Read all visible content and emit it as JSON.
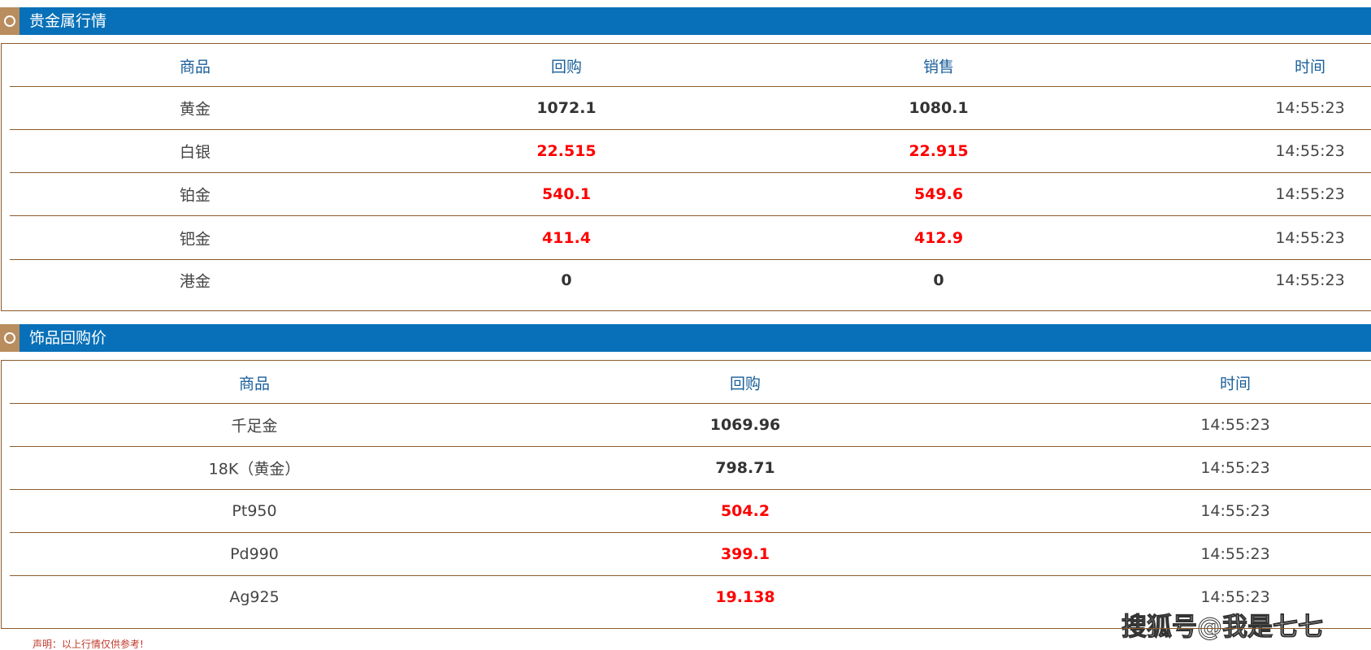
{
  "sections": [
    {
      "title": "贵金属行情",
      "columns": [
        "商品",
        "回购",
        "销售",
        "时间"
      ],
      "rows": [
        {
          "cells": [
            "黄金",
            "1072.1",
            "1080.1",
            "14:55:23"
          ],
          "color": "#333333"
        },
        {
          "cells": [
            "白银",
            "22.515",
            "22.915",
            "14:55:23"
          ],
          "color": "#ff0000"
        },
        {
          "cells": [
            "铂金",
            "540.1",
            "549.6",
            "14:55:23"
          ],
          "color": "#ff0000"
        },
        {
          "cells": [
            "钯金",
            "411.4",
            "412.9",
            "14:55:23"
          ],
          "color": "#ff0000"
        },
        {
          "cells": [
            "港金",
            "0",
            "0",
            "14:55:23"
          ],
          "color": "#333333"
        }
      ]
    },
    {
      "title": "饰品回购价",
      "columns": [
        "商品",
        "回购",
        "时间"
      ],
      "rows": [
        {
          "cells": [
            "千足金",
            "1069.96",
            "14:55:23"
          ],
          "color": "#333333"
        },
        {
          "cells": [
            "18K（黄金）",
            "798.71",
            "14:55:23"
          ],
          "color": "#333333"
        },
        {
          "cells": [
            "Pt950",
            "504.2",
            "14:55:23"
          ],
          "color": "#ff0000"
        },
        {
          "cells": [
            "Pd990",
            "399.1",
            "14:55:23"
          ],
          "color": "#ff0000"
        },
        {
          "cells": [
            "Ag925",
            "19.138",
            "14:55:23"
          ],
          "color": "#ff0000"
        }
      ]
    }
  ],
  "footer": "声明：以上行情仅供参考!",
  "watermark": "搜狐号@我是七七"
}
